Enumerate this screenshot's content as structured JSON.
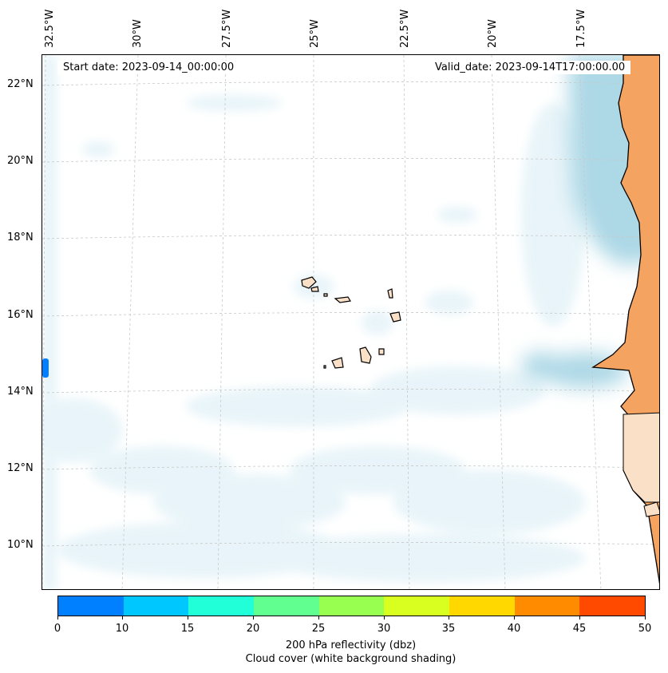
{
  "map": {
    "start_date": "Start date: 2023-09-14_00:00:00",
    "valid_date": "Valid_date: 2023-09-14T17:00:00.00",
    "lon_labels": [
      "32.5°W",
      "30°W",
      "27.5°W",
      "25°W",
      "22.5°W",
      "20°W",
      "17.5°W"
    ],
    "lat_labels": [
      "22°N",
      "20°N",
      "18°N",
      "16°N",
      "14°N",
      "12°N",
      "10°N"
    ],
    "colors": {
      "land_africa": "#f4a460",
      "island_fill": "#fbe0c8",
      "cloud_light": "#e4f3f8",
      "cloud_dark": "#add8e6",
      "reflectivity_blue": "#0080ff"
    }
  },
  "colorbar": {
    "ticks": [
      "0",
      "10",
      "15",
      "20",
      "25",
      "30",
      "35",
      "40",
      "45",
      "50"
    ],
    "colors": [
      "#0080ff",
      "#00c8ff",
      "#20ffd8",
      "#60ff90",
      "#98ff50",
      "#d8ff20",
      "#ffd800",
      "#ff8c00",
      "#ff4a00"
    ],
    "label_line1": "200 hPa reflectivity (dbz)",
    "label_line2": "Cloud cover (white background shading)"
  }
}
